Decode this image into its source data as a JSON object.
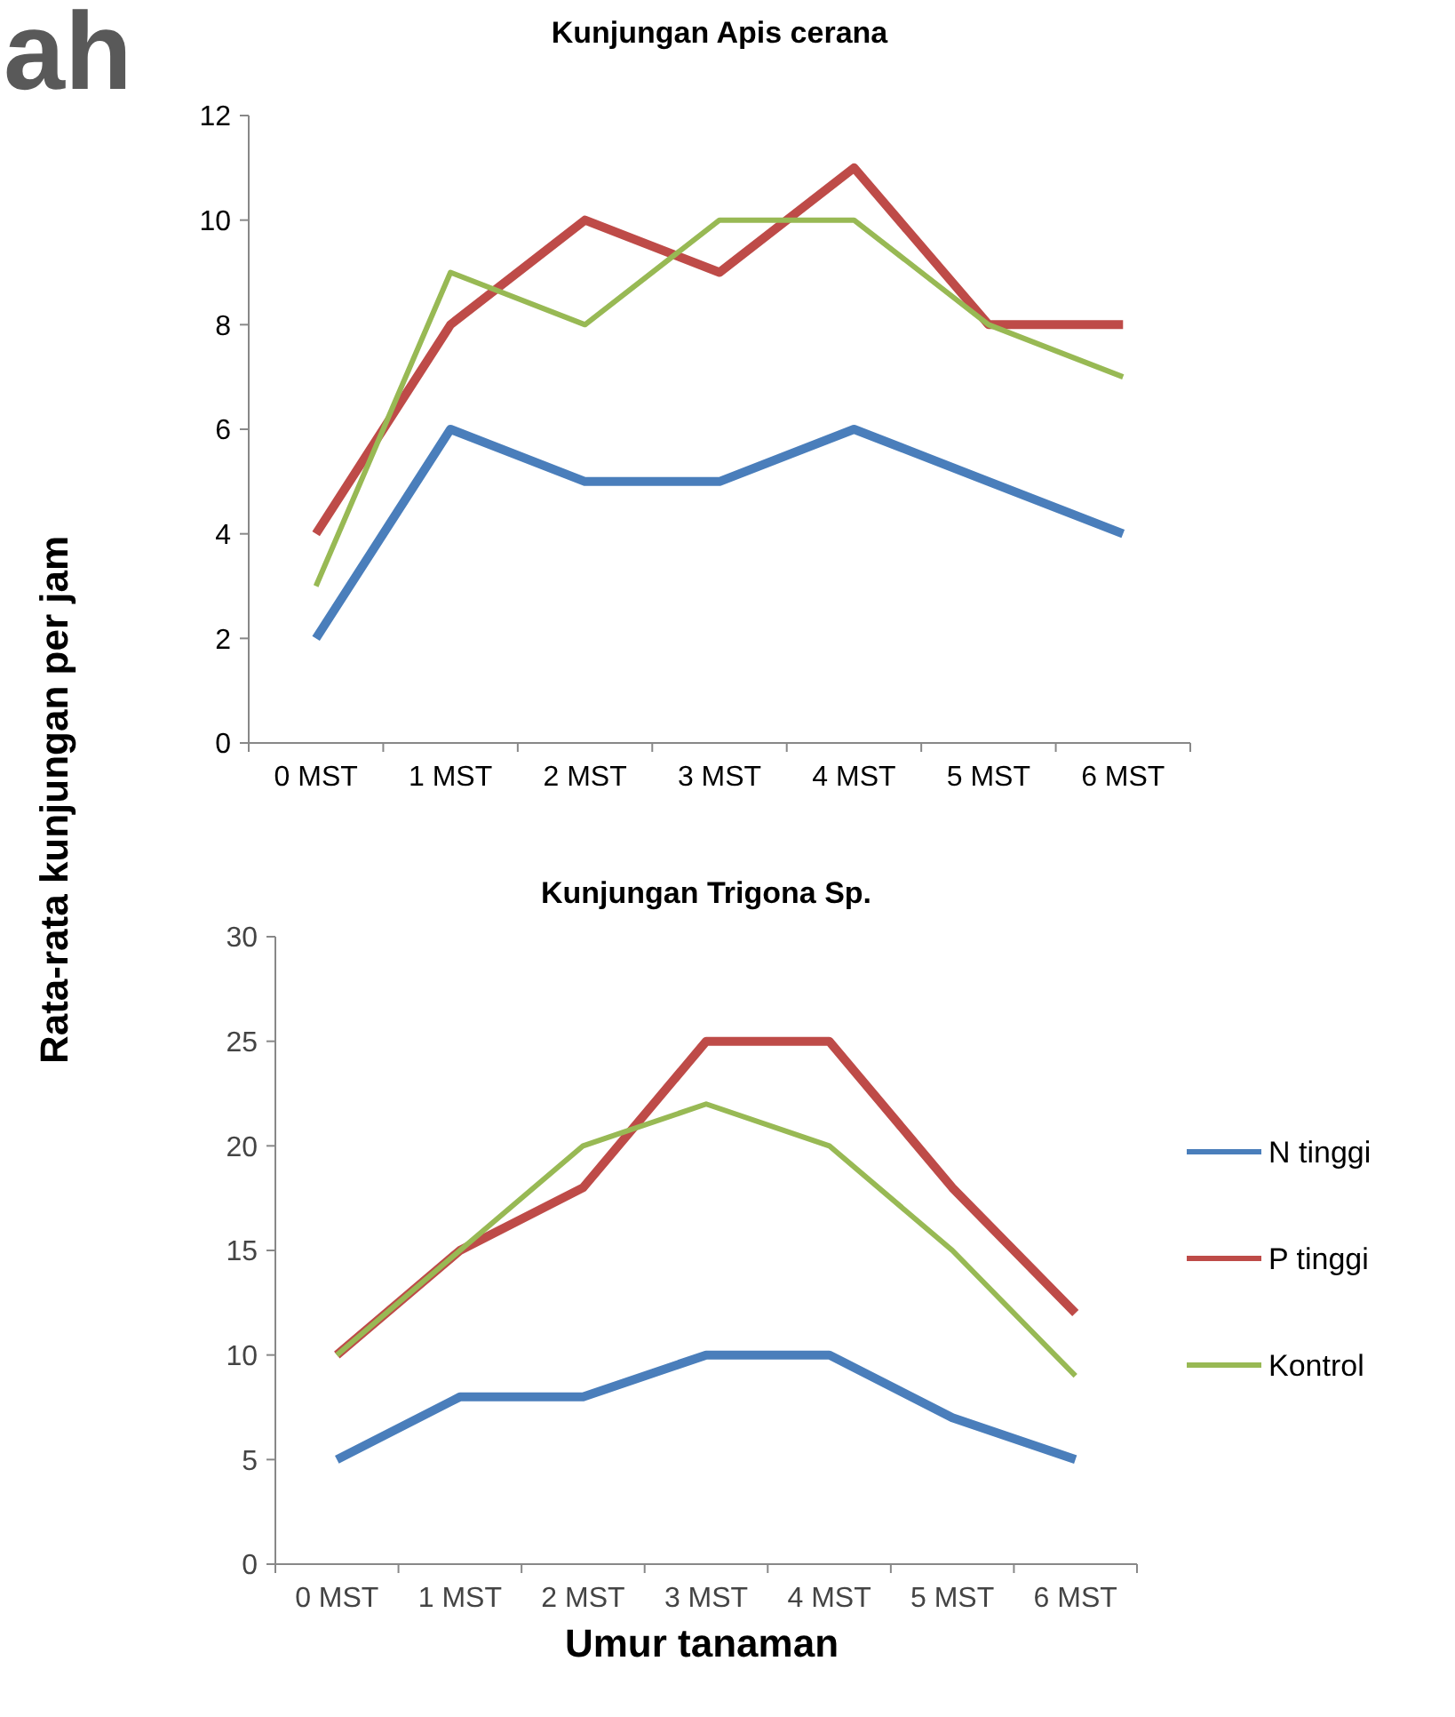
{
  "chart_data": [
    {
      "type": "line",
      "title": "Kunjungan Apis cerana",
      "ylabel": "Rata-rata kunjungan per jam",
      "annotations": [
        "ah"
      ],
      "categories": [
        "0 MST",
        "1 MST",
        "2 MST",
        "3 MST",
        "4 MST",
        "5 MST",
        "6 MST"
      ],
      "ylim": [
        0,
        12
      ],
      "yticks": [
        0,
        2,
        4,
        6,
        8,
        10,
        12
      ],
      "grid": false,
      "legend": false,
      "series": [
        {
          "color": "#4a7ebb",
          "values": [
            2,
            6,
            5,
            5,
            6,
            5,
            4
          ]
        },
        {
          "color": "#be4b48",
          "values": [
            4,
            8,
            10,
            9,
            11,
            8,
            8
          ]
        },
        {
          "color": "#98b954",
          "values": [
            3,
            9,
            8,
            10,
            10,
            8,
            7
          ]
        }
      ]
    },
    {
      "type": "line",
      "title": "Kunjungan Trigona Sp.",
      "xlabel": "Umur tanaman",
      "categories": [
        "0 MST",
        "1 MST",
        "2 MST",
        "3 MST",
        "4 MST",
        "5 MST",
        "6 MST"
      ],
      "ylim": [
        0,
        30
      ],
      "yticks": [
        0,
        5,
        10,
        15,
        20,
        25,
        30
      ],
      "grid": false,
      "legend": "right",
      "series": [
        {
          "name": "N tinggi",
          "color": "#4a7ebb",
          "values": [
            5,
            8,
            8,
            10,
            10,
            7,
            5
          ]
        },
        {
          "name": "P tinggi",
          "color": "#be4b48",
          "values": [
            10,
            15,
            18,
            25,
            25,
            18,
            12
          ]
        },
        {
          "name": "Kontrol",
          "color": "#98b954",
          "values": [
            10,
            15,
            20,
            22,
            20,
            15,
            9
          ]
        }
      ]
    }
  ]
}
